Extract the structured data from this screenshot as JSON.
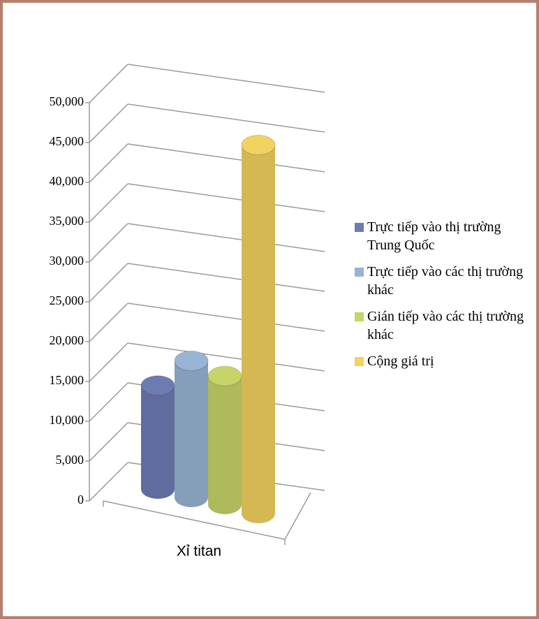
{
  "chart_data": {
    "type": "bar3d",
    "categories": [
      "Xỉ titan"
    ],
    "series": [
      {
        "name": "Trực tiếp vào thị trường Trung Quốc",
        "color": "#6d7bb3",
        "values": [
          12500
        ]
      },
      {
        "name": "Trực tiếp vào các thị trường khác",
        "color": "#98b4d4",
        "values": [
          16500
        ]
      },
      {
        "name": "Gián tiếp vào các thị trường khác",
        "color": "#c6d468",
        "values": [
          15500
        ]
      },
      {
        "name": "Cộng giá trị",
        "color": "#f2d260",
        "values": [
          44500
        ]
      }
    ],
    "ylim": [
      0,
      50000
    ],
    "yticks": [
      0,
      {
        "value": 5000,
        "label": "5,000"
      },
      {
        "value": 10000,
        "label": "10,000"
      },
      {
        "value": 15000,
        "label": "15,000"
      },
      {
        "value": 20000,
        "label": "20,000"
      },
      {
        "value": 25000,
        "label": "25,000"
      },
      {
        "value": 30000,
        "label": "30,000"
      },
      {
        "value": 35000,
        "label": "35,000"
      },
      {
        "value": 40000,
        "label": "40,000"
      },
      {
        "value": 45000,
        "label": "45,000"
      },
      {
        "value": 50000,
        "label": "50,000"
      }
    ],
    "grid": true,
    "legend": "right"
  }
}
